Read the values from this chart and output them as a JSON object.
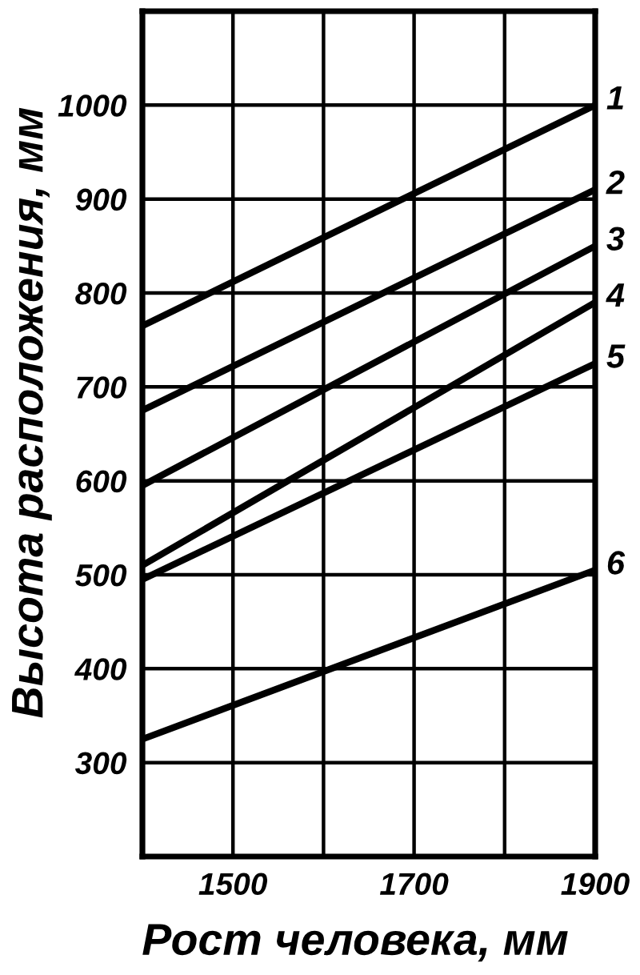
{
  "chart_data": {
    "type": "line",
    "xlabel": "Рост человека, мм",
    "ylabel": "Высота расположения, мм",
    "x": [
      1400,
      1900
    ],
    "series": [
      {
        "name": "1",
        "color": "#000000",
        "values": [
          765,
          1000
        ]
      },
      {
        "name": "2",
        "color": "#000000",
        "values": [
          675,
          910
        ]
      },
      {
        "name": "3",
        "color": "#000000",
        "values": [
          595,
          850
        ]
      },
      {
        "name": "4",
        "color": "#000000",
        "values": [
          510,
          790
        ]
      },
      {
        "name": "5",
        "color": "#000000",
        "values": [
          495,
          725
        ]
      },
      {
        "name": "6",
        "color": "#000000",
        "values": [
          325,
          505
        ]
      }
    ],
    "xlim": [
      1400,
      1900
    ],
    "ylim": [
      200,
      1100
    ],
    "xticks": [
      1500,
      {
        "value": 1600,
        "label": null
      },
      1700,
      {
        "value": 1800,
        "label": null
      },
      1900
    ],
    "yticks": [
      300,
      400,
      500,
      600,
      700,
      800,
      900,
      1000
    ],
    "grid": true,
    "line_style": "solid"
  }
}
